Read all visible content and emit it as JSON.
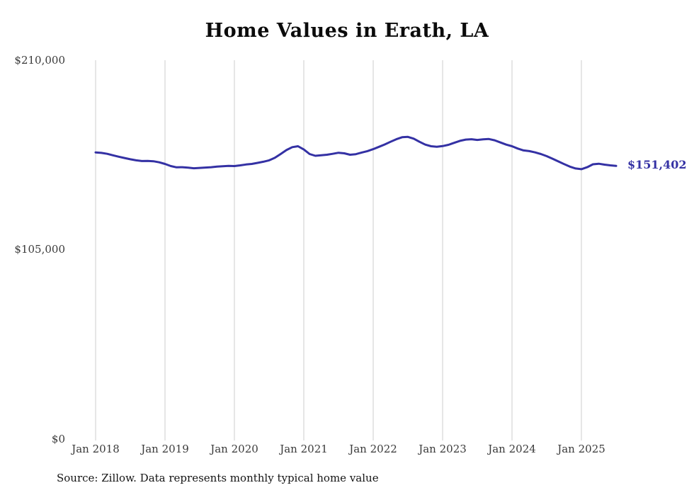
{
  "title": "Home Values in Erath, LA",
  "source_note": "Source: Zillow. Data represents monthly typical home value",
  "end_label": "$151,402",
  "colors": {
    "line": "#3431a4",
    "end_label": "#3431a4",
    "grid": "#cccccc",
    "axis_text": "#3a3a3a",
    "title_text": "#0b0b0b"
  },
  "chart_data": {
    "type": "line",
    "title": "Home Values in Erath, LA",
    "xlabel": "",
    "ylabel": "",
    "ylim": [
      0,
      210000
    ],
    "grid": "vertical-only",
    "legend": "none",
    "y_tick_values": [
      210000,
      105000,
      0
    ],
    "y_tick_labels": [
      "$210,000",
      "$105,000",
      "$0"
    ],
    "x_tick_labels": [
      "Jan 2018",
      "Jan 2019",
      "Jan 2020",
      "Jan 2021",
      "Jan 2022",
      "Jan 2023",
      "Jan 2024",
      "Jan 2025"
    ],
    "last_value_label": "$151,402",
    "last_value": 151402,
    "months": [
      "2018-01",
      "2018-02",
      "2018-03",
      "2018-04",
      "2018-05",
      "2018-06",
      "2018-07",
      "2018-08",
      "2018-09",
      "2018-10",
      "2018-11",
      "2018-12",
      "2019-01",
      "2019-02",
      "2019-03",
      "2019-04",
      "2019-05",
      "2019-06",
      "2019-07",
      "2019-08",
      "2019-09",
      "2019-10",
      "2019-11",
      "2019-12",
      "2020-01",
      "2020-02",
      "2020-03",
      "2020-04",
      "2020-05",
      "2020-06",
      "2020-07",
      "2020-08",
      "2020-09",
      "2020-10",
      "2020-11",
      "2020-12",
      "2021-01",
      "2021-02",
      "2021-03",
      "2021-04",
      "2021-05",
      "2021-06",
      "2021-07",
      "2021-08",
      "2021-09",
      "2021-10",
      "2021-11",
      "2021-12",
      "2022-01",
      "2022-02",
      "2022-03",
      "2022-04",
      "2022-05",
      "2022-06",
      "2022-07",
      "2022-08",
      "2022-09",
      "2022-10",
      "2022-11",
      "2022-12",
      "2023-01",
      "2023-02",
      "2023-03",
      "2023-04",
      "2023-05",
      "2023-06",
      "2023-07",
      "2023-08",
      "2023-09",
      "2023-10",
      "2023-11",
      "2023-12",
      "2024-01",
      "2024-02",
      "2024-03",
      "2024-04",
      "2024-05",
      "2024-06",
      "2024-07",
      "2024-08",
      "2024-09",
      "2024-10",
      "2024-11",
      "2024-12",
      "2025-01",
      "2025-02",
      "2025-03",
      "2025-04",
      "2025-05",
      "2025-06",
      "2025-07"
    ],
    "series": [
      {
        "name": "Typical home value",
        "values": [
          158900,
          158600,
          158100,
          157300,
          156500,
          155800,
          155100,
          154500,
          154100,
          154200,
          154000,
          153400,
          152500,
          151300,
          150600,
          150700,
          150400,
          150100,
          150300,
          150500,
          150700,
          151000,
          151200,
          151400,
          151300,
          151700,
          152200,
          152500,
          153100,
          153700,
          154500,
          155900,
          158000,
          160200,
          161800,
          162300,
          160500,
          158000,
          157000,
          157300,
          157600,
          158100,
          158700,
          158400,
          157600,
          157900,
          158800,
          159600,
          160700,
          162000,
          163300,
          164800,
          166200,
          167300,
          167500,
          166500,
          164800,
          163200,
          162300,
          162000,
          162400,
          163100,
          164200,
          165300,
          166000,
          166200,
          165800,
          166100,
          166300,
          165600,
          164400,
          163200,
          162300,
          161000,
          160000,
          159600,
          158900,
          158000,
          156800,
          155400,
          153900,
          152400,
          151000,
          150000,
          149600,
          150700,
          152300,
          152600,
          152100,
          151700,
          151402
        ]
      }
    ]
  }
}
